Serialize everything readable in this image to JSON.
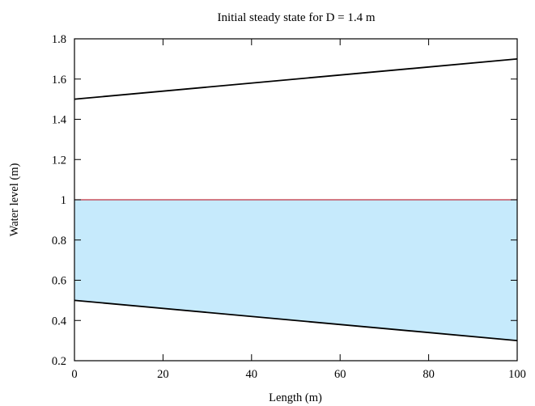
{
  "chart_data": {
    "type": "area",
    "title": "Initial steady state for D = 1.4 m",
    "xlabel": "Length (m)",
    "ylabel": "Water level (m)",
    "xlim": [
      0,
      100
    ],
    "ylim": [
      0.2,
      1.8
    ],
    "xticks": [
      0,
      20,
      40,
      60,
      80,
      100
    ],
    "xtick_labels": [
      "0",
      "20",
      "40",
      "60",
      "80",
      "100"
    ],
    "yticks": [
      0.2,
      0.4,
      0.6,
      0.8,
      1.0,
      1.2,
      1.4,
      1.6,
      1.8
    ],
    "ytick_labels": [
      "0.2",
      "0.4",
      "0.6",
      "0.8",
      "1",
      "1.2",
      "1.4",
      "1.6",
      "1.8"
    ],
    "grid": false,
    "legend": "none",
    "fill": {
      "between": [
        "bed",
        "water-surface"
      ],
      "color": "#c6eafc"
    },
    "series": [
      {
        "id": "top-line",
        "x": [
          0,
          100
        ],
        "values": [
          1.5,
          1.7
        ],
        "color": "#000000"
      },
      {
        "id": "water-surface",
        "x": [
          0,
          100
        ],
        "values": [
          1.0,
          1.0
        ],
        "color": "#c0303f"
      },
      {
        "id": "bed",
        "x": [
          0,
          100
        ],
        "values": [
          0.5,
          0.3
        ],
        "color": "#000000"
      }
    ]
  }
}
